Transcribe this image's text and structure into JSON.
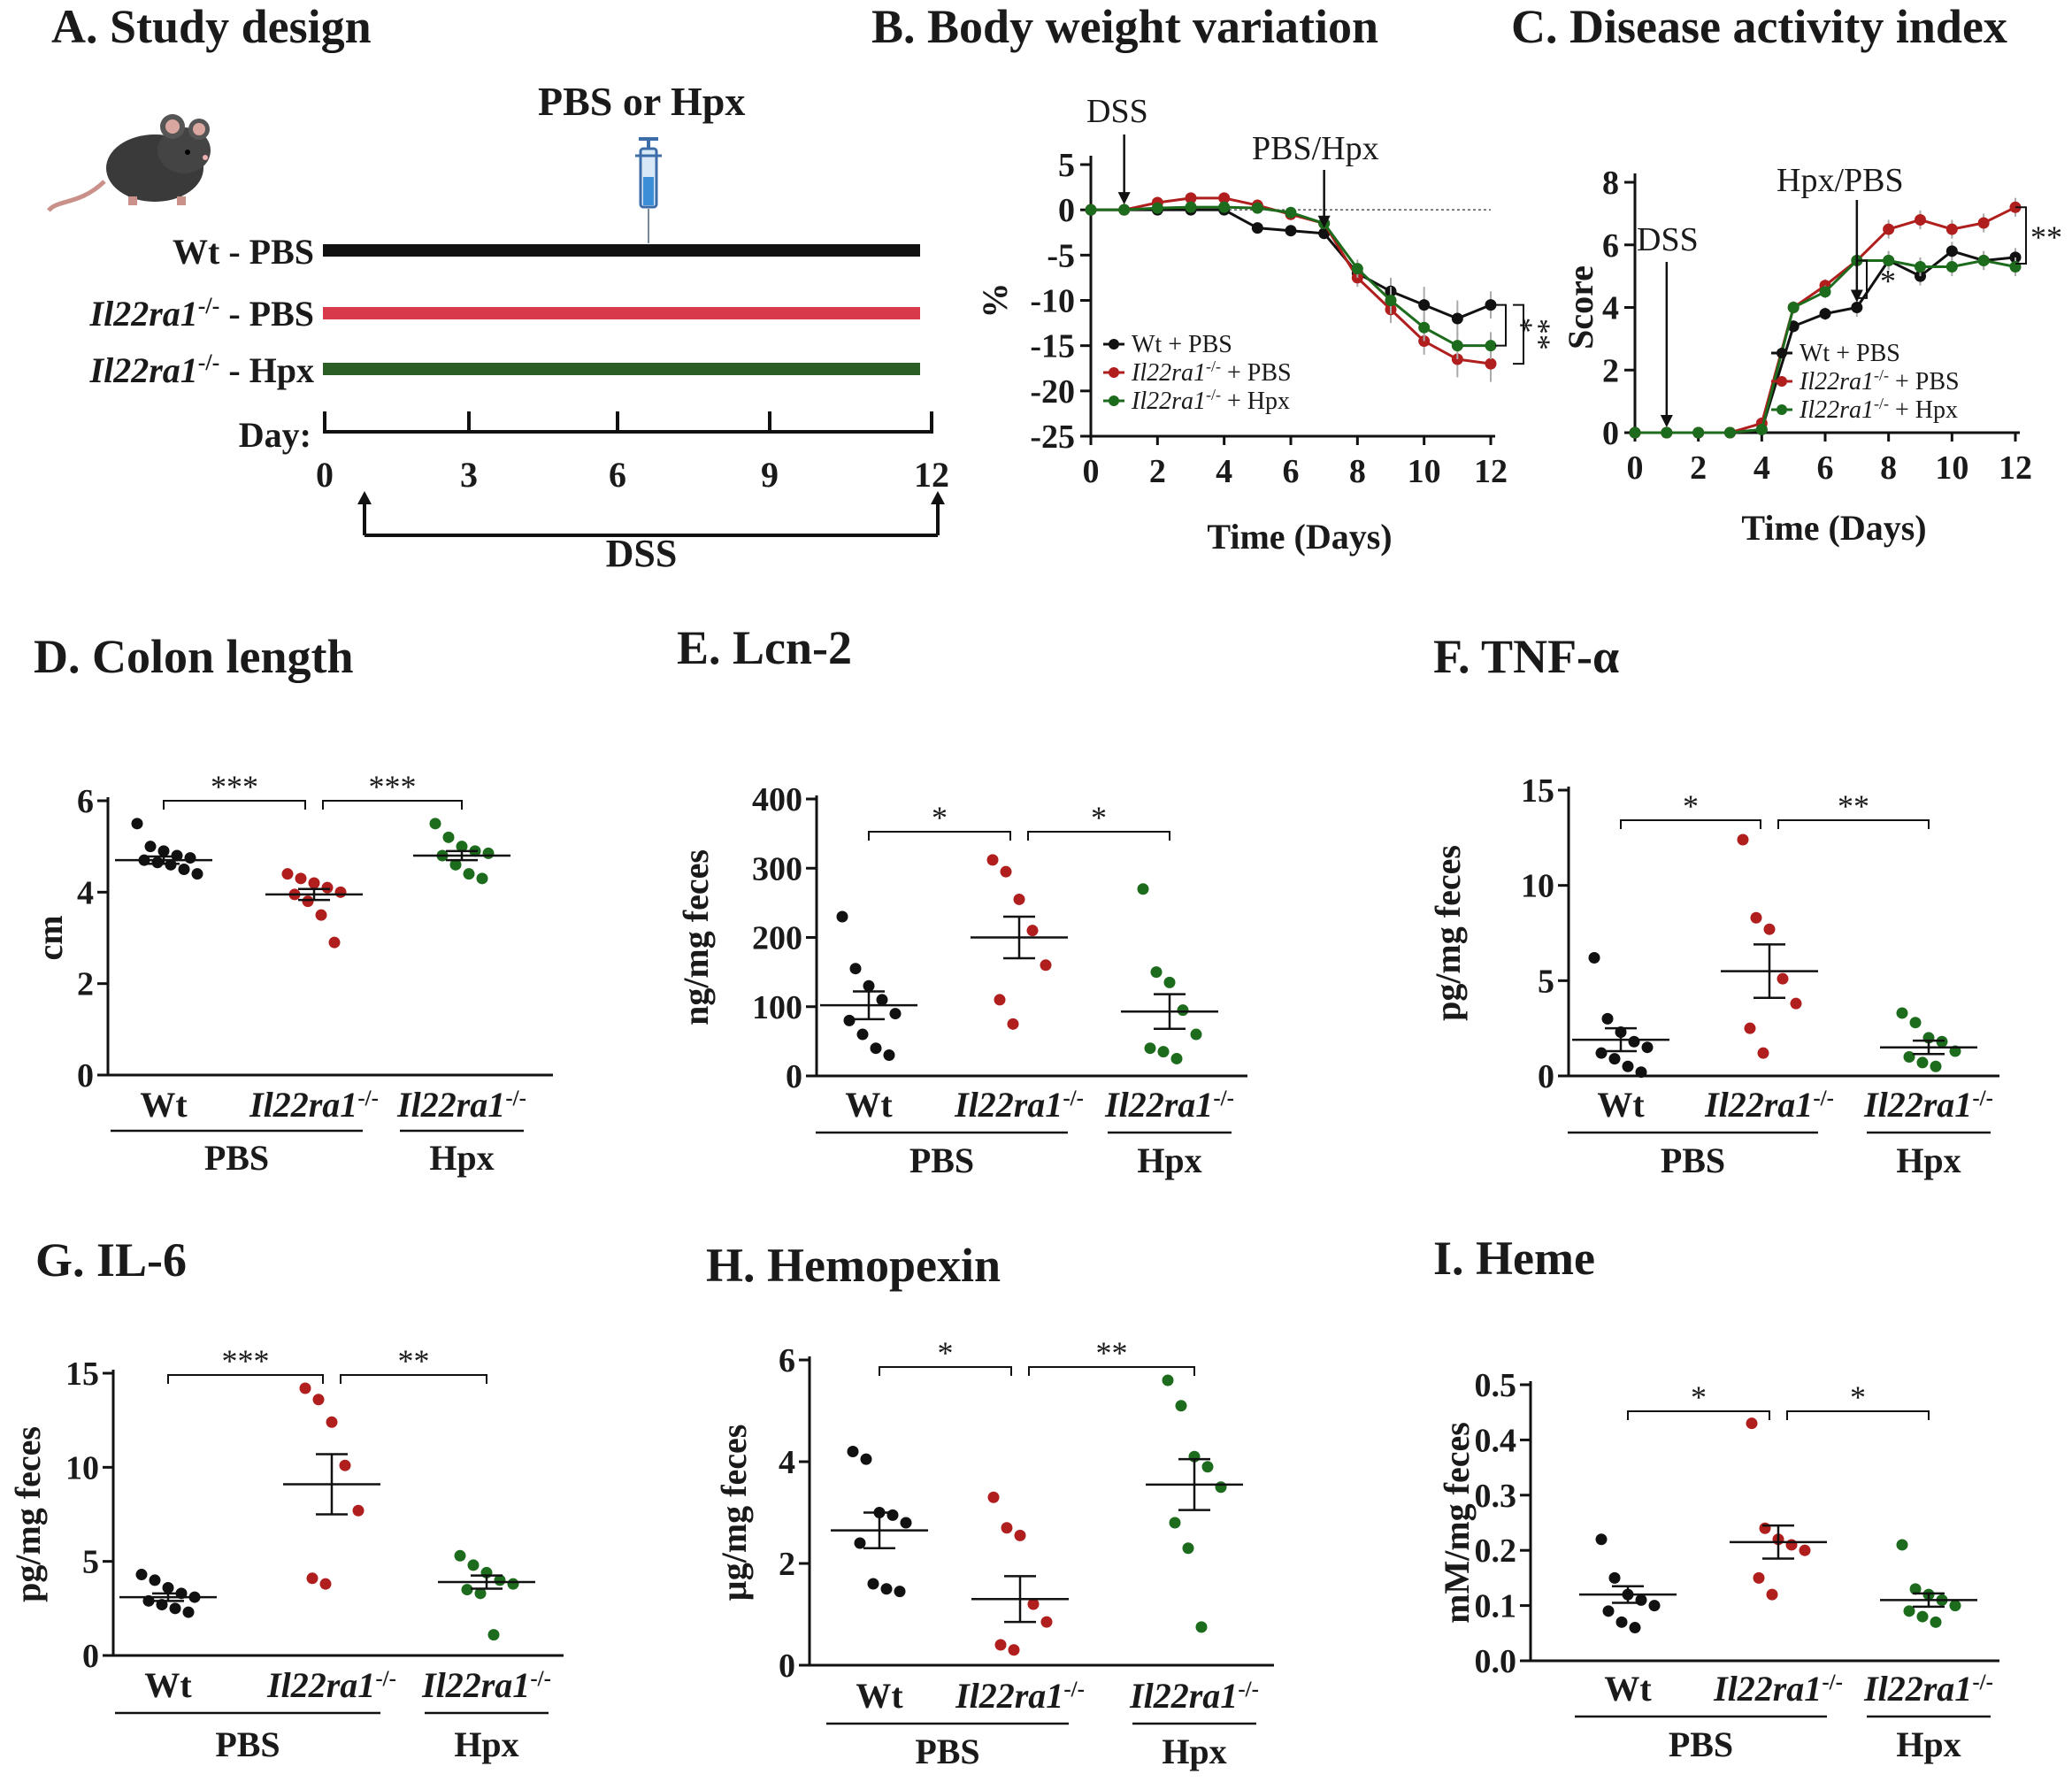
{
  "colors": {
    "wt": "#111111",
    "ko": "#b01e1e",
    "hpx": "#1d6b1d",
    "pbsbar": "#d83a4b",
    "hpxbar": "#2a5e24"
  },
  "panelA": {
    "title": "A. Study design",
    "treatment": "PBS or Hpx",
    "rows": [
      {
        "gene": "Wt",
        "sup": "",
        "label": " - PBS",
        "color": "#111111"
      },
      {
        "gene": "Il22ra1",
        "sup": "-/-",
        "label": " - PBS",
        "color": "#d83a4b"
      },
      {
        "gene": "Il22ra1",
        "sup": "-/-",
        "label": " - Hpx",
        "color": "#2a5e24"
      }
    ],
    "day_label": "Day:",
    "days": [
      "0",
      "3",
      "6",
      "9",
      "12"
    ],
    "dss_label": "DSS",
    "icons": [
      "mouse-icon",
      "syringe-icon"
    ]
  },
  "chart_data": [
    {
      "id": "B",
      "type": "line",
      "title": "B. Body weight variation",
      "xlabel": "Time (Days)",
      "ylabel": "%",
      "xlim": [
        0,
        12
      ],
      "ylim": [
        -25,
        5
      ],
      "xticks": [
        0,
        2,
        4,
        6,
        8,
        10,
        12
      ],
      "yticks": [
        5,
        0,
        -5,
        -10,
        -15,
        -20,
        -25
      ],
      "x": [
        0,
        1,
        2,
        3,
        4,
        5,
        6,
        7,
        8,
        9,
        10,
        11,
        12
      ],
      "series": [
        {
          "name": "Wt + PBS",
          "gene": "Wt",
          "sup": "",
          "tail": " + PBS",
          "color": "#111111",
          "values": [
            0,
            0,
            0,
            0,
            0,
            -2,
            -2.3,
            -2.6,
            -7,
            -9,
            -10.5,
            -12,
            -10.5
          ],
          "err": [
            0,
            0,
            0,
            0,
            0,
            0.3,
            0.3,
            0.5,
            1,
            1.5,
            2,
            2,
            1.5
          ]
        },
        {
          "name": "Il22ra1-/- + PBS",
          "gene": "Il22ra1",
          "sup": "-/-",
          "tail": " + PBS",
          "color": "#b01e1e",
          "values": [
            0,
            0,
            0.8,
            1.3,
            1.3,
            0.5,
            -0.5,
            -1.5,
            -7.5,
            -11,
            -14.5,
            -16.5,
            -17
          ],
          "err": [
            0,
            0,
            0.3,
            0.3,
            0.3,
            0.3,
            0.3,
            0.5,
            1,
            1.5,
            1.5,
            2,
            2
          ]
        },
        {
          "name": "Il22ra1-/- + Hpx",
          "gene": "Il22ra1",
          "sup": "-/-",
          "tail": " + Hpx",
          "color": "#1d6b1d",
          "values": [
            0,
            0,
            0.2,
            0.3,
            0.3,
            0.2,
            -0.3,
            -1.5,
            -6.5,
            -10,
            -13,
            -15,
            -15
          ],
          "err": [
            0,
            0,
            0.3,
            0.3,
            0.3,
            0.3,
            0.3,
            0.5,
            1,
            1.5,
            1.5,
            1.5,
            1.5
          ]
        }
      ],
      "annotations": [
        "DSS",
        "PBS/Hpx"
      ],
      "sig": [
        "*",
        "**"
      ]
    },
    {
      "id": "C",
      "type": "line",
      "title": "C. Disease activity index",
      "xlabel": "Time (Days)",
      "ylabel": "Score",
      "xlim": [
        0,
        12
      ],
      "ylim": [
        0,
        8
      ],
      "xticks": [
        0,
        2,
        4,
        6,
        8,
        10,
        12
      ],
      "yticks": [
        0,
        2,
        4,
        6,
        8
      ],
      "x": [
        0,
        1,
        2,
        3,
        4,
        5,
        6,
        7,
        8,
        9,
        10,
        11,
        12
      ],
      "series": [
        {
          "name": "Wt + PBS",
          "gene": "Wt",
          "sup": "",
          "tail": " + PBS",
          "color": "#111111",
          "values": [
            0,
            0,
            0,
            0,
            0.1,
            3.4,
            3.8,
            4.0,
            5.5,
            5.0,
            5.8,
            5.5,
            5.6
          ],
          "err": [
            0,
            0,
            0,
            0,
            0,
            0.2,
            0.2,
            0.3,
            0.3,
            0.3,
            0.3,
            0.3,
            0.3
          ]
        },
        {
          "name": "Il22ra1-/- + PBS",
          "gene": "Il22ra1",
          "sup": "-/-",
          "tail": " + PBS",
          "color": "#b01e1e",
          "values": [
            0,
            0,
            0,
            0,
            0.3,
            4.0,
            4.7,
            5.5,
            6.5,
            6.8,
            6.5,
            6.7,
            7.2
          ],
          "err": [
            0,
            0,
            0,
            0,
            0.1,
            0.2,
            0.2,
            0.3,
            0.3,
            0.3,
            0.3,
            0.3,
            0.3
          ]
        },
        {
          "name": "Il22ra1-/- + Hpx",
          "gene": "Il22ra1",
          "sup": "-/-",
          "tail": " + Hpx",
          "color": "#1d6b1d",
          "values": [
            0,
            0,
            0,
            0,
            0.1,
            4.0,
            4.5,
            5.5,
            5.5,
            5.3,
            5.3,
            5.5,
            5.3
          ],
          "err": [
            0,
            0,
            0,
            0,
            0,
            0.2,
            0.2,
            0.3,
            0.3,
            0.3,
            0.3,
            0.3,
            0.3
          ]
        }
      ],
      "annotations": [
        "DSS",
        "Hpx/PBS"
      ],
      "sig": [
        "*",
        "**"
      ]
    },
    {
      "id": "D",
      "type": "scatter",
      "title": "D. Colon length",
      "ylabel": "cm",
      "ylim": [
        0,
        6
      ],
      "yticks": [
        0,
        2,
        4,
        6
      ],
      "groups": [
        {
          "gene": "Wt",
          "sup": "",
          "color": "#111111",
          "mean": 4.7,
          "sem": 0.08,
          "points": [
            5.5,
            5.0,
            4.9,
            4.8,
            4.75,
            4.7,
            4.65,
            4.6,
            4.5,
            4.4
          ]
        },
        {
          "gene": "Il22ra1",
          "sup": "-/-",
          "color": "#b01e1e",
          "mean": 3.95,
          "sem": 0.12,
          "points": [
            4.4,
            4.3,
            4.2,
            4.1,
            4.0,
            3.95,
            3.8,
            3.5,
            2.9
          ]
        },
        {
          "gene": "Il22ra1",
          "sup": "-/-",
          "color": "#1d6b1d",
          "mean": 4.8,
          "sem": 0.1,
          "points": [
            5.5,
            5.2,
            5.0,
            4.9,
            4.85,
            4.8,
            4.6,
            4.4,
            4.3
          ]
        }
      ],
      "treatments": [
        "PBS",
        "Hpx"
      ],
      "sig": [
        "***",
        "***"
      ]
    },
    {
      "id": "E",
      "type": "scatter",
      "title": "E. Lcn-2",
      "ylabel": "ng/mg feces",
      "ylim": [
        0,
        400
      ],
      "yticks": [
        0,
        100,
        200,
        300,
        400
      ],
      "groups": [
        {
          "gene": "Wt",
          "sup": "",
          "color": "#111111",
          "mean": 102,
          "sem": 20,
          "points": [
            230,
            155,
            130,
            110,
            90,
            80,
            60,
            40,
            30
          ]
        },
        {
          "gene": "Il22ra1",
          "sup": "-/-",
          "color": "#b01e1e",
          "mean": 200,
          "sem": 30,
          "points": [
            312,
            295,
            255,
            210,
            160,
            110,
            75
          ]
        },
        {
          "gene": "Il22ra1",
          "sup": "-/-",
          "color": "#1d6b1d",
          "mean": 93,
          "sem": 25,
          "points": [
            270,
            150,
            135,
            95,
            60,
            40,
            35,
            25
          ]
        }
      ],
      "treatments": [
        "PBS",
        "Hpx"
      ],
      "sig": [
        "*",
        "*"
      ]
    },
    {
      "id": "F",
      "type": "scatter",
      "title": "F. TNF-α",
      "ylabel": "pg/mg feces",
      "ylim": [
        0,
        15
      ],
      "yticks": [
        0,
        5,
        10,
        15
      ],
      "groups": [
        {
          "gene": "Wt",
          "sup": "",
          "color": "#111111",
          "mean": 1.9,
          "sem": 0.6,
          "points": [
            6.2,
            3.0,
            2.3,
            1.8,
            1.5,
            1.2,
            0.9,
            0.5,
            0.2
          ]
        },
        {
          "gene": "Il22ra1",
          "sup": "-/-",
          "color": "#b01e1e",
          "mean": 5.5,
          "sem": 1.4,
          "points": [
            12.4,
            8.3,
            7.7,
            5.1,
            3.8,
            2.5,
            1.2
          ]
        },
        {
          "gene": "Il22ra1",
          "sup": "-/-",
          "color": "#1d6b1d",
          "mean": 1.5,
          "sem": 0.35,
          "points": [
            3.3,
            2.8,
            2.0,
            1.8,
            1.3,
            1.0,
            0.7,
            0.5
          ]
        }
      ],
      "treatments": [
        "PBS",
        "Hpx"
      ],
      "sig": [
        "*",
        "**"
      ]
    },
    {
      "id": "G",
      "type": "scatter",
      "title": "G. IL-6",
      "ylabel": "pg/mg feces",
      "ylim": [
        0,
        15
      ],
      "yticks": [
        0,
        5,
        10,
        15
      ],
      "groups": [
        {
          "gene": "Wt",
          "sup": "",
          "color": "#111111",
          "mean": 3.1,
          "sem": 0.2,
          "points": [
            4.3,
            4.0,
            3.6,
            3.3,
            3.1,
            2.9,
            2.7,
            2.5,
            2.3
          ]
        },
        {
          "gene": "Il22ra1",
          "sup": "-/-",
          "color": "#b01e1e",
          "mean": 9.1,
          "sem": 1.6,
          "points": [
            14.2,
            13.6,
            12.4,
            10.1,
            7.7,
            4.1,
            3.8
          ]
        },
        {
          "gene": "Il22ra1",
          "sup": "-/-",
          "color": "#1d6b1d",
          "mean": 3.9,
          "sem": 0.35,
          "points": [
            5.3,
            4.8,
            4.4,
            4.0,
            3.8,
            3.5,
            3.3,
            1.1
          ]
        }
      ],
      "treatments": [
        "PBS",
        "Hpx"
      ],
      "sig": [
        "***",
        "**"
      ]
    },
    {
      "id": "H",
      "type": "scatter",
      "title": "H. Hemopexin",
      "ylabel": "µg/mg feces",
      "ylim": [
        0,
        6
      ],
      "yticks": [
        0,
        2,
        4,
        6
      ],
      "groups": [
        {
          "gene": "Wt",
          "sup": "",
          "color": "#111111",
          "mean": 2.65,
          "sem": 0.35,
          "points": [
            4.2,
            4.05,
            3.0,
            2.95,
            2.8,
            2.4,
            1.6,
            1.5,
            1.45
          ]
        },
        {
          "gene": "Il22ra1",
          "sup": "-/-",
          "color": "#b01e1e",
          "mean": 1.3,
          "sem": 0.45,
          "points": [
            3.3,
            2.7,
            2.55,
            1.2,
            0.85,
            0.4,
            0.3
          ]
        },
        {
          "gene": "Il22ra1",
          "sup": "-/-",
          "color": "#1d6b1d",
          "mean": 3.55,
          "sem": 0.5,
          "points": [
            5.6,
            5.1,
            4.1,
            3.9,
            3.5,
            2.8,
            2.3,
            0.75
          ]
        }
      ],
      "treatments": [
        "PBS",
        "Hpx"
      ],
      "sig": [
        "*",
        "**"
      ]
    },
    {
      "id": "I",
      "type": "scatter",
      "title": "I. Heme",
      "ylabel": "mM/mg feces",
      "ylim": [
        0,
        0.5
      ],
      "yticks": [
        0.0,
        0.1,
        0.2,
        0.3,
        0.4,
        0.5
      ],
      "yticklabels": [
        "0.0",
        "0.1",
        "0.2",
        "0.3",
        "0.4",
        "0.5"
      ],
      "groups": [
        {
          "gene": "Wt",
          "sup": "",
          "color": "#111111",
          "mean": 0.12,
          "sem": 0.015,
          "points": [
            0.22,
            0.15,
            0.12,
            0.11,
            0.1,
            0.09,
            0.07,
            0.06
          ]
        },
        {
          "gene": "Il22ra1",
          "sup": "-/-",
          "color": "#b01e1e",
          "mean": 0.215,
          "sem": 0.03,
          "points": [
            0.43,
            0.24,
            0.22,
            0.21,
            0.2,
            0.15,
            0.12
          ]
        },
        {
          "gene": "Il22ra1",
          "sup": "-/-",
          "color": "#1d6b1d",
          "mean": 0.11,
          "sem": 0.012,
          "points": [
            0.21,
            0.13,
            0.12,
            0.11,
            0.1,
            0.09,
            0.08,
            0.07
          ]
        }
      ],
      "treatments": [
        "PBS",
        "Hpx"
      ],
      "sig": [
        "*",
        "*"
      ]
    }
  ]
}
